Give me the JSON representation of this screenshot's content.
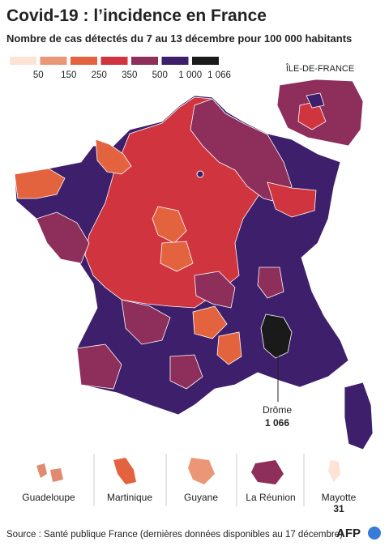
{
  "header": {
    "title": "Covid-19 : l’incidence en France",
    "subtitle": "Nombre de cas détectés du 7 au 13 décembre pour 100 000 habitants"
  },
  "legend": {
    "colors": [
      "#fde3d3",
      "#eb9677",
      "#e4633f",
      "#d0353f",
      "#8e2e5a",
      "#3d1f6b",
      "#1a1a1a"
    ],
    "labels": [
      "50",
      "150",
      "250",
      "350",
      "500",
      "1 000",
      "1 066"
    ]
  },
  "inset": {
    "label": "ÎLE-DE-FRANCE"
  },
  "callout": {
    "name": "Drôme",
    "value": "1 066"
  },
  "overseas": {
    "names": [
      "Guadeloupe",
      "Martinique",
      "Guyane",
      "La Réunion",
      "Mayotte"
    ],
    "mayotte_value": "31"
  },
  "footer": {
    "source": "Source : Santé publique France (dernières données disponibles au 17 décembre)",
    "logo": "AFP"
  }
}
